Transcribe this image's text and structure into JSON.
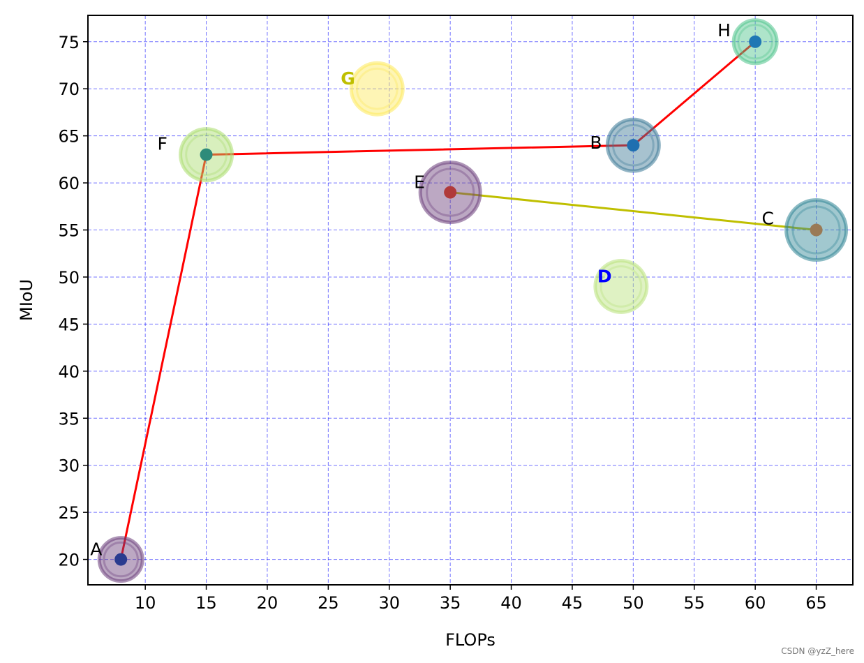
{
  "chart_data": {
    "type": "scatter",
    "title": "",
    "xlabel": "FLOPs",
    "ylabel": "MIoU",
    "xlim": [
      5.3,
      68
    ],
    "ylim": [
      17.3,
      77.8
    ],
    "xticks": [
      10,
      15,
      20,
      25,
      30,
      35,
      40,
      45,
      50,
      55,
      60,
      65
    ],
    "yticks": [
      20,
      25,
      30,
      35,
      40,
      45,
      50,
      55,
      60,
      65,
      70,
      75
    ],
    "grid": true,
    "grid_color": "#0000ff",
    "points": [
      {
        "label": "A",
        "x": 8,
        "y": 20,
        "size": "medium",
        "bubble_color": "#6a3d7a",
        "dot_color": "#2a3b8f",
        "label_color": "#000000",
        "label_bold": false
      },
      {
        "label": "B",
        "x": 50,
        "y": 64,
        "size": "large",
        "bubble_color": "#3b7895",
        "dot_color": "#1f6fb0",
        "label_color": "#000000",
        "label_bold": false
      },
      {
        "label": "C",
        "x": 65,
        "y": 55,
        "size": "xlarge",
        "bubble_color": "#2e8494",
        "dot_color": "#9a7a55",
        "label_color": "#000000",
        "label_bold": false
      },
      {
        "label": "D",
        "x": 49,
        "y": 49,
        "size": "large",
        "bubble_color": "#b8e27a",
        "dot_color": null,
        "label_color": "#0000ff",
        "label_bold": true
      },
      {
        "label": "E",
        "x": 35,
        "y": 59,
        "size": "xlarge",
        "bubble_color": "#6a3d7a",
        "dot_color": "#b03a3a",
        "label_color": "#000000",
        "label_bold": false
      },
      {
        "label": "F",
        "x": 15,
        "y": 63,
        "size": "large",
        "bubble_color": "#a9dc6c",
        "dot_color": "#2e8b7a",
        "label_color": "#000000",
        "label_bold": false
      },
      {
        "label": "G",
        "x": 29,
        "y": 70,
        "size": "large",
        "bubble_color": "#fde95a",
        "dot_color": null,
        "label_color": "#bfbf00",
        "label_bold": true
      },
      {
        "label": "H",
        "x": 60,
        "y": 75,
        "size": "medium",
        "bubble_color": "#4cc38a",
        "dot_color": "#1f77b4",
        "label_color": "#000000",
        "label_bold": false
      }
    ],
    "lines": [
      {
        "points": [
          "A",
          "F",
          "B",
          "H"
        ],
        "color": "#ff0000"
      },
      {
        "points": [
          "E",
          "C"
        ],
        "color": "#bfbf00"
      }
    ]
  },
  "watermark": "CSDN @yzZ_here"
}
